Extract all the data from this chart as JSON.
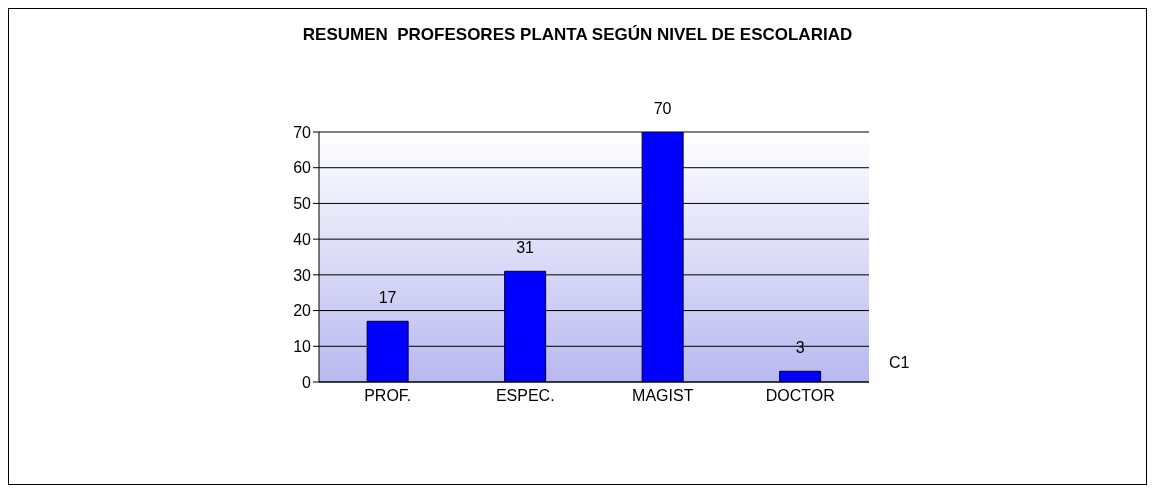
{
  "chart_data": {
    "type": "bar",
    "title": "RESUMEN  PROFESORES PLANTA SEGÚN NIVEL DE ESCOLARIAD",
    "categories": [
      "PROF.",
      "ESPEC.",
      "MAGIST",
      "DOCTOR"
    ],
    "series": [
      {
        "name": "C1",
        "color": "#0000ff",
        "values": [
          17,
          31,
          70,
          3
        ]
      }
    ],
    "ylim": [
      0,
      70
    ],
    "yticks": [
      0,
      10,
      20,
      30,
      40,
      50,
      60,
      70
    ],
    "grid": "y",
    "data_labels": true,
    "legend": "right"
  }
}
